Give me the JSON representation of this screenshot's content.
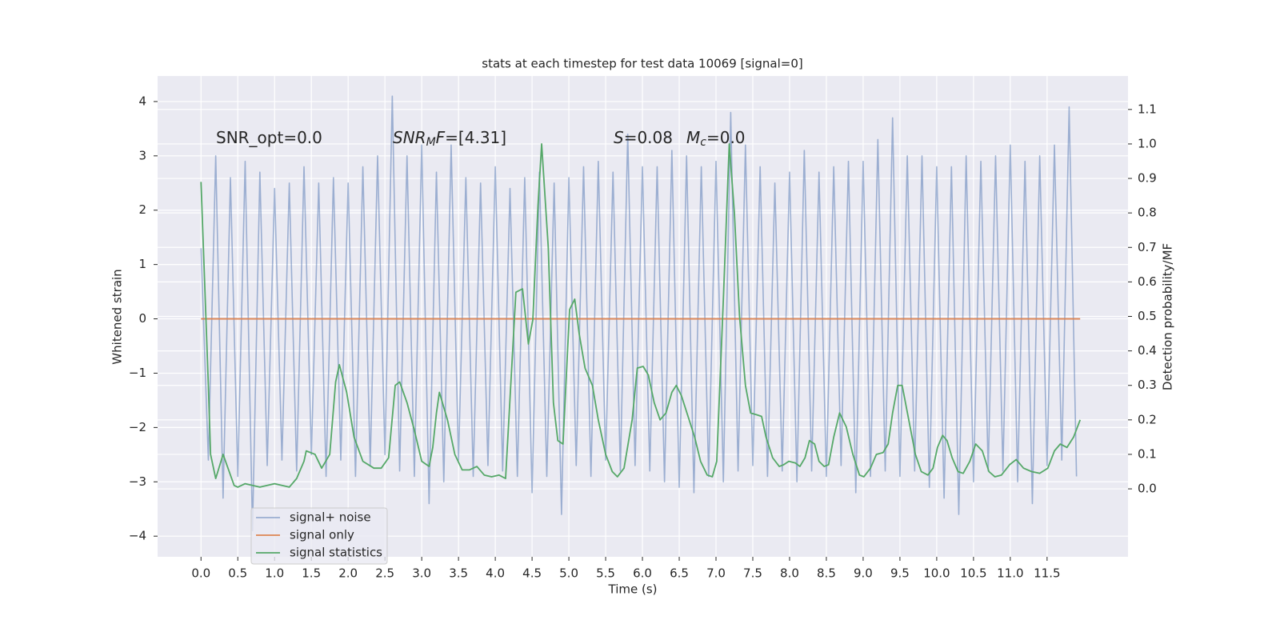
{
  "chart_data": {
    "type": "line",
    "title": "stats at each timestep for test data 10069 [signal=0]",
    "xlabel": "Time (s)",
    "ylabel": "Whitened strain",
    "y2label": "Detection probability/MF",
    "grid": true,
    "legend": "lower left",
    "background": "#eaeaf2",
    "xlim": [
      -0.59,
      12.6
    ],
    "ylim": [
      -4.38,
      4.47
    ],
    "y2lim": [
      -0.197,
      1.197
    ],
    "xticks": [
      {
        "value": 0,
        "label": "0.0"
      },
      {
        "value": 0.5,
        "label": "0.5"
      },
      {
        "value": 1,
        "label": "1.0"
      },
      {
        "value": 1.5,
        "label": "1.5"
      },
      {
        "value": 2,
        "label": "2.0"
      },
      {
        "value": 2.5,
        "label": "2.5"
      },
      {
        "value": 3,
        "label": "3.0"
      },
      {
        "value": 3.5,
        "label": "3.5"
      },
      {
        "value": 4,
        "label": "4.0"
      },
      {
        "value": 4.5,
        "label": "4.5"
      },
      {
        "value": 5,
        "label": "5.0"
      },
      {
        "value": 5.5,
        "label": "5.5"
      },
      {
        "value": 6,
        "label": "6.0"
      },
      {
        "value": 6.5,
        "label": "6.5"
      },
      {
        "value": 7,
        "label": "7.0"
      },
      {
        "value": 7.5,
        "label": "7.5"
      },
      {
        "value": 8,
        "label": "8.0"
      },
      {
        "value": 8.5,
        "label": "8.5"
      },
      {
        "value": 9,
        "label": "9.0"
      },
      {
        "value": 9.5,
        "label": "9.5"
      },
      {
        "value": 10,
        "label": "10.0"
      },
      {
        "value": 10.5,
        "label": "10.5"
      },
      {
        "value": 11,
        "label": "11.0"
      },
      {
        "value": 11.5,
        "label": "11.5"
      }
    ],
    "yticks": [
      {
        "value": -4,
        "label": "−4"
      },
      {
        "value": -3,
        "label": "−3"
      },
      {
        "value": -2,
        "label": "−2"
      },
      {
        "value": -1,
        "label": "−1"
      },
      0,
      1,
      2,
      3,
      4
    ],
    "y2ticks": [
      {
        "value": 0,
        "label": "0.0"
      },
      {
        "value": 0.1,
        "label": "0.1"
      },
      {
        "value": 0.2,
        "label": "0.2"
      },
      {
        "value": 0.3,
        "label": "0.3"
      },
      {
        "value": 0.4,
        "label": "0.4"
      },
      {
        "value": 0.5,
        "label": "0.5"
      },
      {
        "value": 0.6,
        "label": "0.6"
      },
      {
        "value": 0.7,
        "label": "0.7"
      },
      {
        "value": 0.8,
        "label": "0.8"
      },
      {
        "value": 0.9,
        "label": "0.9"
      },
      {
        "value": 1,
        "label": "1.0"
      },
      {
        "value": 1.1,
        "label": "1.1"
      }
    ],
    "annotations": [
      [
        {
          "text": "SNR_opt=0.0",
          "style": "normal"
        }
      ],
      [
        {
          "text": "SNR",
          "style": "italic"
        },
        {
          "text": "M",
          "style": "sub"
        },
        {
          "text": "F",
          "style": "italic"
        },
        {
          "text": "=[4.31]",
          "style": "normal"
        }
      ],
      [
        {
          "text": "S",
          "style": "italic"
        },
        {
          "text": "=0.08",
          "style": "normal"
        }
      ],
      [
        {
          "text": "M",
          "style": "italic"
        },
        {
          "text": "c",
          "style": "sub"
        },
        {
          "text": "=0.0",
          "style": "normal"
        }
      ]
    ],
    "series": [
      {
        "name": "signal+ noise",
        "color": "#4c72b0",
        "alpha": 0.5,
        "x": [
          0,
          0.1,
          0.2,
          0.3,
          0.4,
          0.5,
          0.6,
          0.7,
          0.8,
          0.9,
          1,
          1.1,
          1.2,
          1.3,
          1.4,
          1.5,
          1.6,
          1.7,
          1.8,
          1.9,
          2,
          2.1,
          2.2,
          2.3,
          2.4,
          2.5,
          2.6,
          2.7,
          2.8,
          2.9,
          3,
          3.1,
          3.2,
          3.3,
          3.4,
          3.5,
          3.6,
          3.7,
          3.8,
          3.9,
          4,
          4.1,
          4.2,
          4.3,
          4.4,
          4.5,
          4.6,
          4.7,
          4.8,
          4.9,
          5,
          5.1,
          5.2,
          5.3,
          5.4,
          5.5,
          5.6,
          5.7,
          5.8,
          5.9,
          6,
          6.1,
          6.2,
          6.3,
          6.4,
          6.5,
          6.6,
          6.7,
          6.8,
          6.9,
          7,
          7.1,
          7.2,
          7.3,
          7.4,
          7.5,
          7.6,
          7.7,
          7.8,
          7.9,
          8,
          8.1,
          8.2,
          8.3,
          8.4,
          8.5,
          8.6,
          8.7,
          8.8,
          8.9,
          9,
          9.1,
          9.2,
          9.3,
          9.4,
          9.5,
          9.6,
          9.7,
          9.8,
          9.9,
          10,
          10.1,
          10.2,
          10.3,
          10.4,
          10.5,
          10.6,
          10.7,
          10.8,
          10.9,
          11,
          11.1,
          11.2,
          11.3,
          11.4,
          11.5,
          11.6,
          11.7,
          11.8,
          11.9
        ],
        "values": [
          1.3,
          -2.6,
          3.0,
          -3.3,
          2.6,
          -2.9,
          2.9,
          -3.9,
          2.7,
          -2.7,
          2.4,
          -2.6,
          2.5,
          -2.8,
          2.8,
          -2.5,
          2.5,
          -2.9,
          2.6,
          -2.6,
          2.5,
          -2.9,
          2.8,
          -2.7,
          3.0,
          -2.5,
          4.1,
          -2.8,
          3.0,
          -2.9,
          3.2,
          -3.4,
          2.7,
          -3.0,
          3.2,
          -2.6,
          2.6,
          -2.9,
          2.5,
          -2.7,
          2.8,
          -2.8,
          2.4,
          -2.9,
          2.6,
          -3.2,
          2.7,
          -2.9,
          2.5,
          -3.6,
          2.6,
          -2.7,
          2.8,
          -2.9,
          2.9,
          -2.6,
          2.7,
          -2.8,
          3.4,
          -2.7,
          2.8,
          -2.8,
          2.8,
          -3.0,
          3.1,
          -3.1,
          3.0,
          -3.2,
          2.8,
          -2.9,
          2.9,
          -3.0,
          3.8,
          -2.8,
          3.2,
          -2.7,
          2.8,
          -2.9,
          2.5,
          -2.8,
          2.7,
          -3.0,
          3.1,
          -2.8,
          2.7,
          -2.9,
          2.8,
          -2.7,
          2.9,
          -3.2,
          2.9,
          -2.9,
          3.3,
          -2.8,
          3.7,
          -2.9,
          3.0,
          -2.8,
          3.0,
          -3.1,
          2.8,
          -3.3,
          2.8,
          -3.6,
          3.0,
          -3.0,
          2.9,
          -2.8,
          3.0,
          -2.8,
          3.2,
          -3.0,
          2.9,
          -3.4,
          3.0,
          -2.7,
          3.2,
          -2.6,
          3.9,
          -2.9
        ]
      },
      {
        "name": "signal only",
        "color": "#dd8452",
        "alpha": 1,
        "x": [
          0,
          11.95
        ],
        "values": [
          0,
          0
        ]
      },
      {
        "name": "signal statistics",
        "color": "#55a868",
        "alpha": 1,
        "axis": "y2",
        "x": [
          0,
          0.1,
          0.13,
          0.2,
          0.3,
          0.45,
          0.5,
          0.6,
          0.7,
          0.8,
          0.9,
          1.0,
          1.1,
          1.2,
          1.3,
          1.4,
          1.43,
          1.55,
          1.64,
          1.75,
          1.83,
          1.88,
          1.98,
          2.08,
          2.2,
          2.35,
          2.45,
          2.55,
          2.64,
          2.7,
          2.8,
          2.9,
          3.0,
          3.1,
          3.15,
          3.2,
          3.24,
          3.35,
          3.45,
          3.55,
          3.65,
          3.75,
          3.85,
          3.95,
          4.05,
          4.14,
          4.28,
          4.37,
          4.45,
          4.51,
          4.58,
          4.63,
          4.72,
          4.79,
          4.85,
          4.92,
          5.01,
          5.08,
          5.14,
          5.22,
          5.32,
          5.4,
          5.5,
          5.59,
          5.66,
          5.75,
          5.86,
          5.93,
          6.01,
          6.08,
          6.16,
          6.24,
          6.32,
          6.4,
          6.46,
          6.53,
          6.62,
          6.71,
          6.79,
          6.88,
          6.95,
          7.01,
          7.1,
          7.18,
          7.25,
          7.32,
          7.4,
          7.47,
          7.55,
          7.62,
          7.68,
          7.77,
          7.86,
          7.92,
          7.99,
          8.08,
          8.14,
          8.21,
          8.27,
          8.34,
          8.4,
          8.47,
          8.53,
          8.6,
          8.68,
          8.77,
          8.86,
          8.95,
          9.01,
          9.1,
          9.18,
          9.27,
          9.34,
          9.4,
          9.47,
          9.53,
          9.62,
          9.71,
          9.79,
          9.88,
          9.95,
          10.01,
          10.08,
          10.14,
          10.21,
          10.29,
          10.36,
          10.45,
          10.53,
          10.62,
          10.71,
          10.79,
          10.88,
          10.99,
          11.08,
          11.18,
          11.29,
          11.4,
          11.51,
          11.6,
          11.68,
          11.77,
          11.86,
          11.95
        ],
        "values": [
          0.89,
          0.3,
          0.1,
          0.03,
          0.1,
          0.01,
          0.005,
          0.015,
          0.01,
          0.005,
          0.01,
          0.015,
          0.01,
          0.005,
          0.03,
          0.08,
          0.11,
          0.1,
          0.06,
          0.1,
          0.31,
          0.36,
          0.28,
          0.15,
          0.08,
          0.06,
          0.06,
          0.09,
          0.3,
          0.31,
          0.25,
          0.17,
          0.08,
          0.065,
          0.12,
          0.22,
          0.28,
          0.2,
          0.1,
          0.055,
          0.055,
          0.065,
          0.04,
          0.035,
          0.04,
          0.03,
          0.57,
          0.58,
          0.42,
          0.49,
          0.82,
          1.0,
          0.7,
          0.25,
          0.14,
          0.13,
          0.52,
          0.55,
          0.45,
          0.35,
          0.3,
          0.2,
          0.1,
          0.05,
          0.035,
          0.06,
          0.2,
          0.35,
          0.355,
          0.33,
          0.25,
          0.2,
          0.22,
          0.28,
          0.3,
          0.27,
          0.21,
          0.15,
          0.08,
          0.04,
          0.035,
          0.08,
          0.55,
          1.0,
          0.8,
          0.5,
          0.3,
          0.22,
          0.215,
          0.21,
          0.15,
          0.09,
          0.065,
          0.07,
          0.08,
          0.075,
          0.065,
          0.09,
          0.14,
          0.13,
          0.08,
          0.065,
          0.07,
          0.15,
          0.22,
          0.18,
          0.1,
          0.04,
          0.035,
          0.06,
          0.1,
          0.105,
          0.13,
          0.22,
          0.3,
          0.3,
          0.2,
          0.1,
          0.05,
          0.04,
          0.06,
          0.12,
          0.155,
          0.14,
          0.09,
          0.05,
          0.045,
          0.08,
          0.13,
          0.11,
          0.05,
          0.035,
          0.04,
          0.07,
          0.085,
          0.06,
          0.05,
          0.045,
          0.06,
          0.11,
          0.13,
          0.12,
          0.15,
          0.2
        ]
      }
    ]
  }
}
